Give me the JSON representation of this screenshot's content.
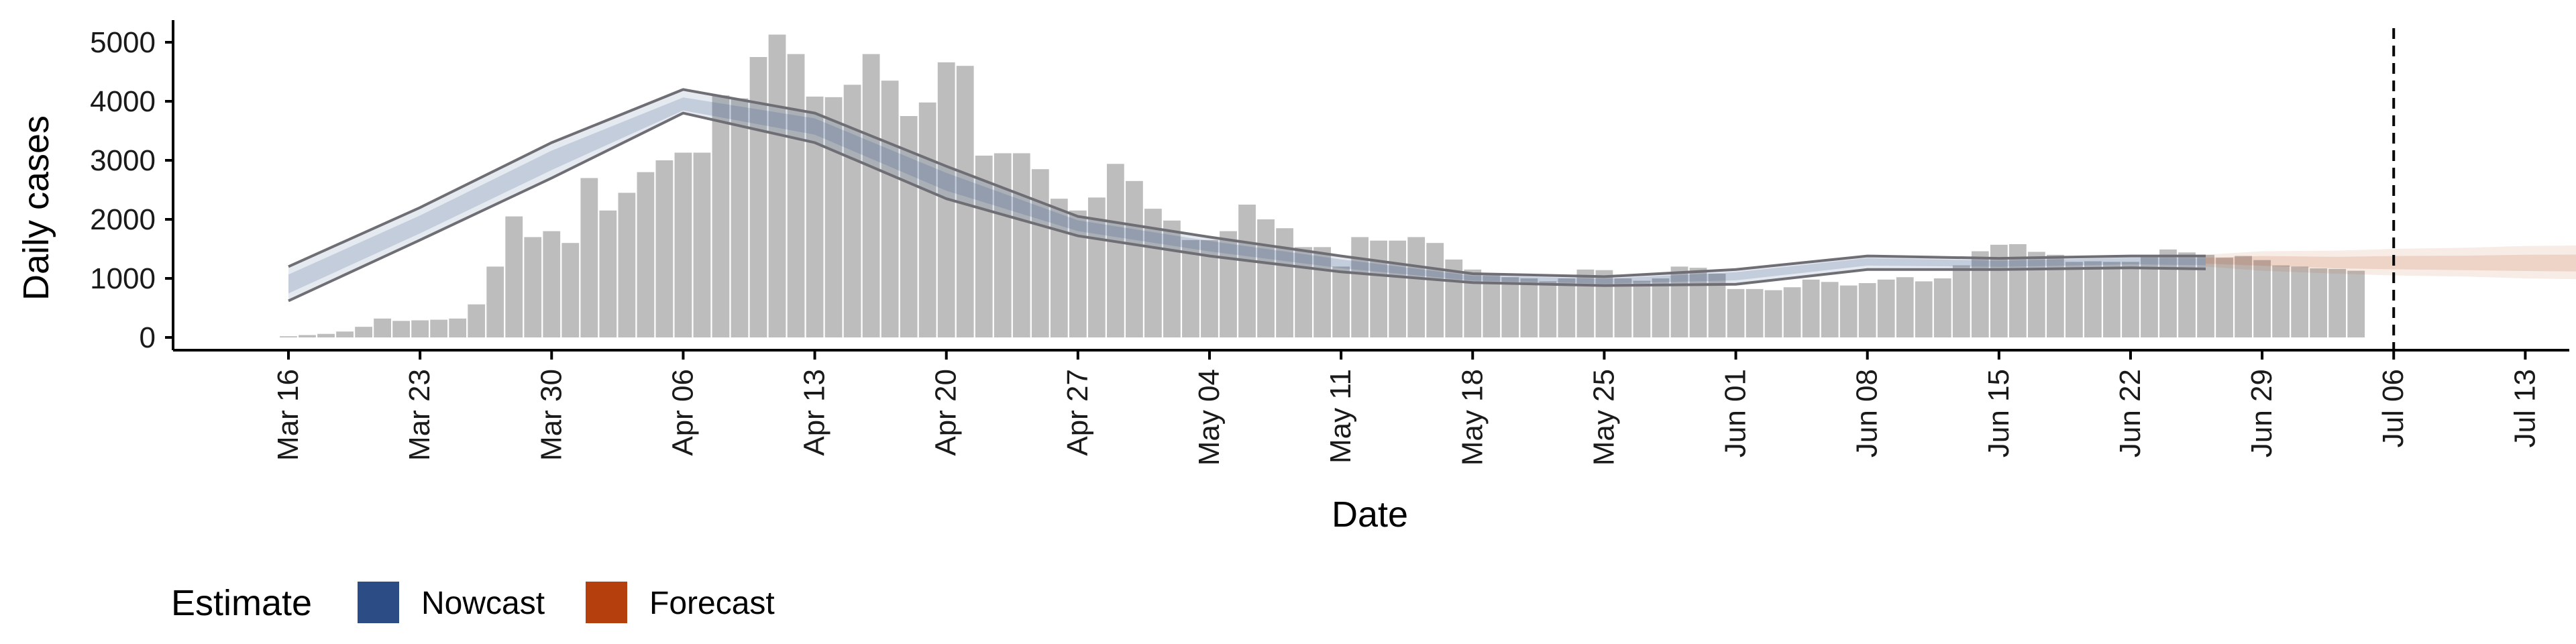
{
  "colors": {
    "bars": "#bdbdbd",
    "nowcast": "#2c4c86",
    "forecast": "#b5400e",
    "outline": "#6e6e74",
    "vline": "#000000",
    "axis": "#000000"
  },
  "chart_data": {
    "type": "bar",
    "xlabel": "Date",
    "ylabel": "Daily cases",
    "ylim": [
      0,
      5100
    ],
    "yticks": [
      0,
      1000,
      2000,
      3000,
      4000,
      5000
    ],
    "x_axis": {
      "start": "Mar 16",
      "ticks": [
        "Mar 16",
        "Mar 23",
        "Mar 30",
        "Apr 06",
        "Apr 13",
        "Apr 20",
        "Apr 27",
        "May 04",
        "May 11",
        "May 18",
        "May 25",
        "Jun 01",
        "Jun 08",
        "Jun 15",
        "Jun 22",
        "Jun 29",
        "Jul 06",
        "Jul 13"
      ]
    },
    "grid": false,
    "legend": {
      "title": "Estimate",
      "position": "bottom",
      "entries": [
        {
          "label": "Nowcast",
          "color": "#2c4c86"
        },
        {
          "label": "Forecast",
          "color": "#b5400e"
        }
      ]
    },
    "vline_date": "Jul 06",
    "daily_cases": [
      20,
      40,
      60,
      100,
      180,
      320,
      280,
      290,
      300,
      320,
      560,
      1200,
      2050,
      1700,
      1800,
      1600,
      2700,
      2150,
      2450,
      2800,
      3000,
      3130,
      3130,
      4100,
      4050,
      4750,
      5130,
      4800,
      4080,
      4070,
      4280,
      4800,
      4350,
      3750,
      3980,
      4660,
      4600,
      3080,
      3120,
      3120,
      2850,
      2350,
      2150,
      2370,
      2940,
      2650,
      2180,
      1980,
      1650,
      1650,
      1800,
      2250,
      2000,
      1850,
      1530,
      1530,
      1200,
      1700,
      1640,
      1640,
      1700,
      1600,
      1320,
      1150,
      1050,
      1020,
      1000,
      950,
      1000,
      1150,
      1140,
      1000,
      960,
      1000,
      1200,
      1180,
      1080,
      820,
      820,
      800,
      850,
      980,
      940,
      880,
      920,
      980,
      1020,
      950,
      1000,
      1220,
      1460,
      1570,
      1580,
      1450,
      1400,
      1280,
      1290,
      1280,
      1280,
      1380,
      1490,
      1440,
      1400,
      1350,
      1380,
      1310,
      1220,
      1200,
      1170,
      1160,
      1130
    ],
    "nowcast": {
      "offsets": [
        0,
        7,
        14,
        21,
        28,
        35,
        42,
        49,
        56,
        63,
        70,
        77,
        84,
        91,
        98,
        102
      ],
      "mean": [
        900,
        1900,
        3000,
        3900,
        3600,
        2650,
        1900,
        1550,
        1250,
        1000,
        950,
        1050,
        1300,
        1250,
        1310,
        1300
      ],
      "lower": [
        620,
        1650,
        2700,
        3800,
        3300,
        2350,
        1720,
        1380,
        1110,
        930,
        880,
        900,
        1150,
        1150,
        1180,
        1160
      ],
      "upper": [
        1200,
        2200,
        3300,
        4200,
        3800,
        2900,
        2050,
        1700,
        1380,
        1080,
        1030,
        1150,
        1380,
        1340,
        1380,
        1380
      ]
    },
    "forecast": {
      "offsets": [
        102,
        105,
        109,
        112,
        116,
        119,
        123
      ],
      "mean": [
        1300,
        1300,
        1260,
        1260,
        1250,
        1250,
        1250
      ],
      "lower": [
        1200,
        1130,
        1080,
        1050,
        1030,
        1000,
        980
      ],
      "upper": [
        1400,
        1460,
        1470,
        1500,
        1520,
        1550,
        1560
      ]
    }
  }
}
